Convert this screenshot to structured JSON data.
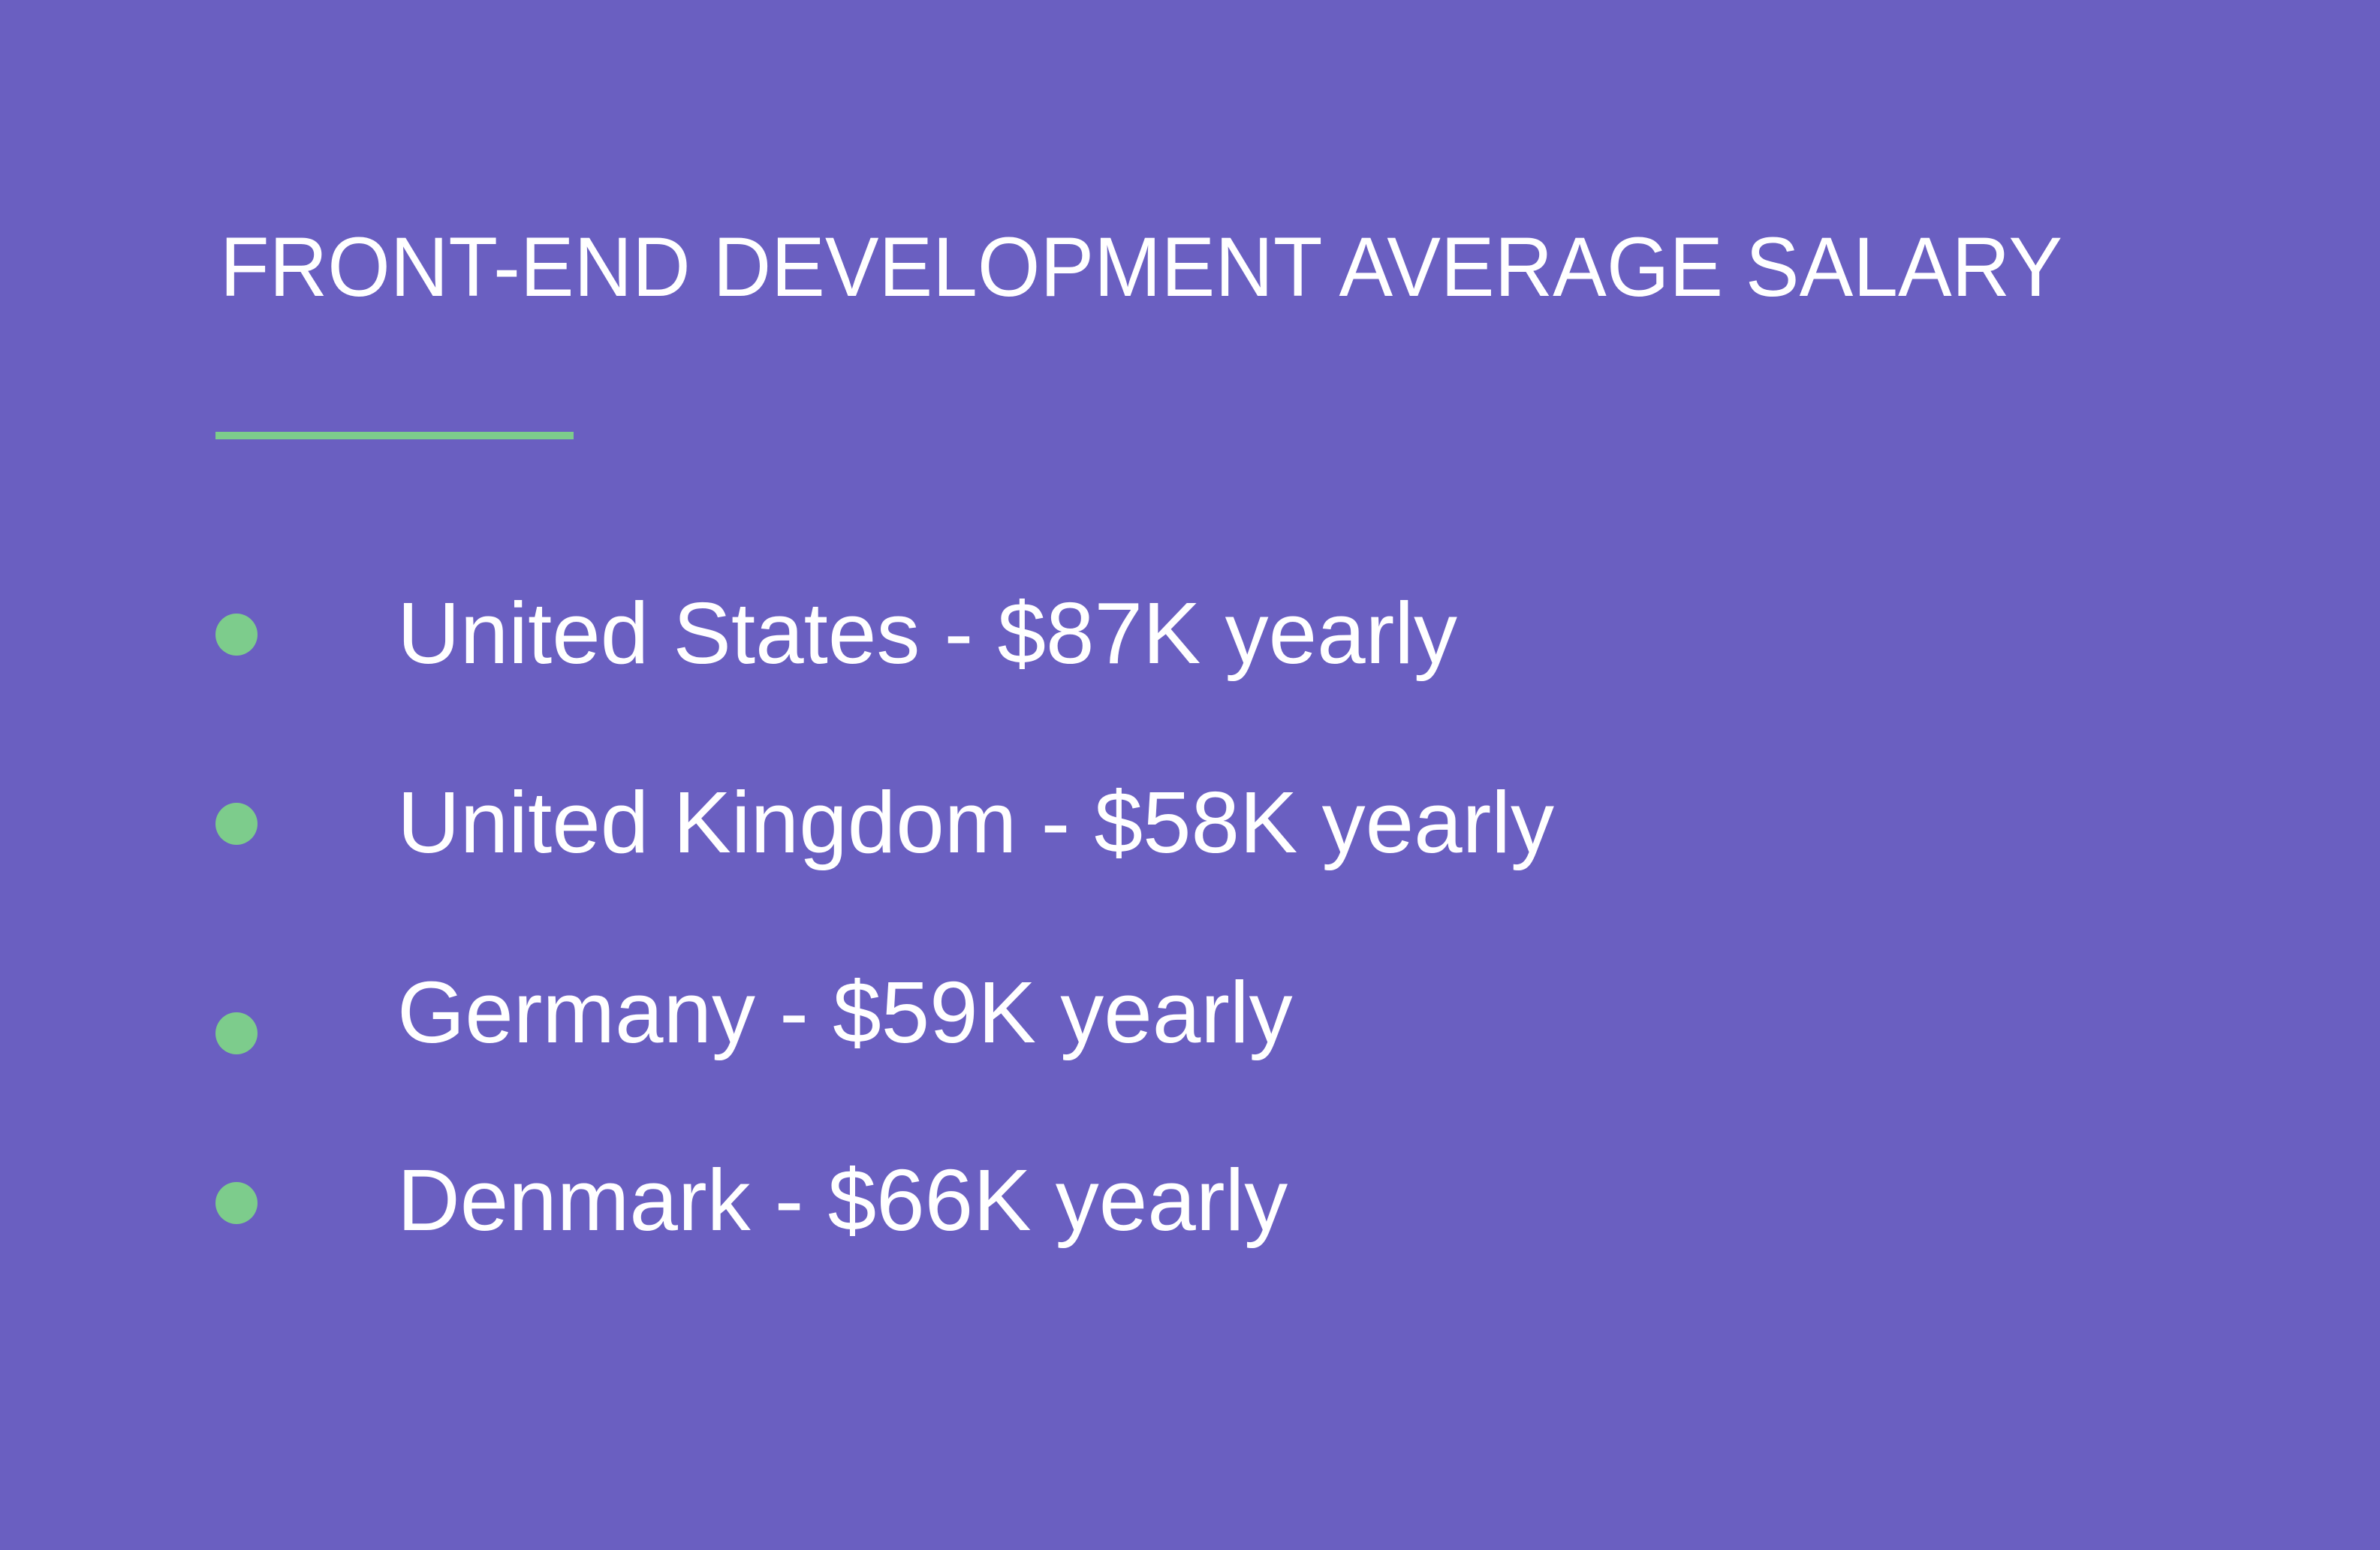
{
  "title": "FRONT-END DEVELOPMENT AVERAGE SALARY",
  "items": [
    "United States - $87K yearly",
    "United Kingdom - $58K yearly",
    "Germany - $59K yearly",
    "Denmark - $66K yearly"
  ]
}
